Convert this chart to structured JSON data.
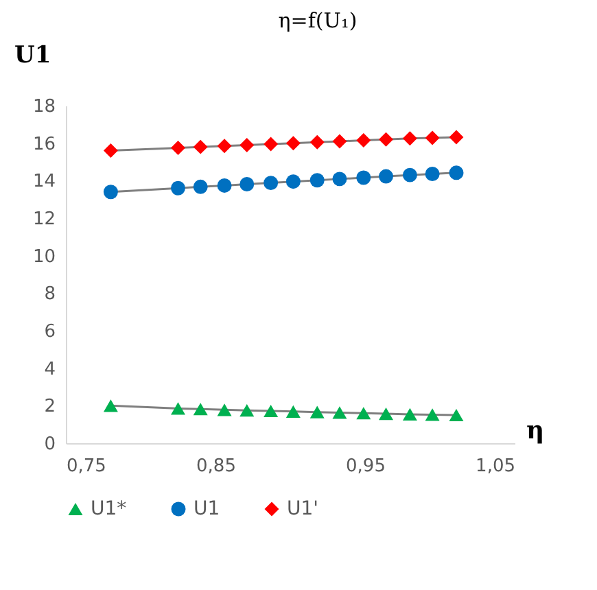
{
  "chart_data": {
    "type": "line",
    "title": "η=f(U₁)",
    "ylabel": "U1",
    "xlabel": "η",
    "xlim": [
      0.75,
      1.05
    ],
    "xticks": [
      {
        "value": 0.75,
        "label": "0,75"
      },
      {
        "value": 0.85,
        "label": "0,85"
      },
      {
        "value": 0.95,
        "label": "0,95"
      },
      {
        "value": 1.05,
        "label": "1,05"
      }
    ],
    "ylim": [
      0,
      18
    ],
    "yticks": [
      0,
      2,
      4,
      6,
      8,
      10,
      12,
      14,
      16,
      18
    ],
    "x": [
      0.78,
      0.825,
      0.84,
      0.856,
      0.871,
      0.887,
      0.902,
      0.918,
      0.933,
      0.949,
      0.964,
      0.98,
      0.995,
      1.011
    ],
    "series": [
      {
        "name": "U1*",
        "color": "#00b050",
        "marker": "triangle",
        "values": [
          2.0,
          1.85,
          1.82,
          1.78,
          1.75,
          1.72,
          1.69,
          1.66,
          1.63,
          1.6,
          1.57,
          1.54,
          1.52,
          1.5
        ]
      },
      {
        "name": "U1",
        "color": "#0070c0",
        "marker": "circle",
        "values": [
          13.4,
          13.6,
          13.67,
          13.74,
          13.81,
          13.88,
          13.95,
          14.02,
          14.09,
          14.16,
          14.23,
          14.3,
          14.36,
          14.42
        ]
      },
      {
        "name": "U1'",
        "color": "#ff0000",
        "marker": "diamond",
        "values": [
          15.6,
          15.75,
          15.8,
          15.85,
          15.9,
          15.95,
          16.0,
          16.05,
          16.1,
          16.15,
          16.2,
          16.25,
          16.28,
          16.32
        ]
      }
    ],
    "grid": false,
    "legend": "bottom",
    "line_style": "solid"
  }
}
